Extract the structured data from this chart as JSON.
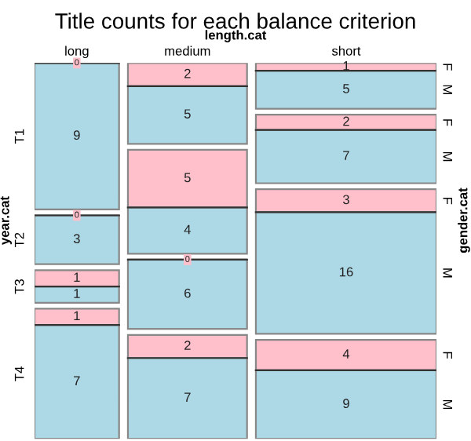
{
  "chart_data": {
    "type": "other",
    "title": "Title counts for each balance criterion",
    "xlabel": "length.cat",
    "ylabel": "year.cat",
    "y2label": "gender.cat",
    "categories": [
      "long",
      "medium",
      "short"
    ],
    "y_categories": [
      "T1",
      "T2",
      "T3",
      "T4"
    ],
    "y2_categories": [
      "F",
      "M"
    ],
    "series": [
      {
        "color": "#ffc0cb",
        "values": [
          0,
          2,
          1
        ]
      },
      {
        "color": "#add8e6",
        "values": [
          9,
          5,
          5
        ]
      },
      {
        "color": "#ffc0cb",
        "values": [
          0,
          5,
          2
        ]
      },
      {
        "color": "#add8e6",
        "values": [
          3,
          4,
          7
        ]
      },
      {
        "color": "#ffc0cb",
        "values": [
          1,
          0,
          3
        ]
      },
      {
        "color": "#add8e6",
        "values": [
          1,
          6,
          16
        ]
      },
      {
        "color": "#ffc0cb",
        "values": [
          1,
          2,
          4
        ]
      },
      {
        "color": "#add8e6",
        "values": [
          7,
          7,
          9
        ]
      }
    ],
    "data_labels": true
  }
}
